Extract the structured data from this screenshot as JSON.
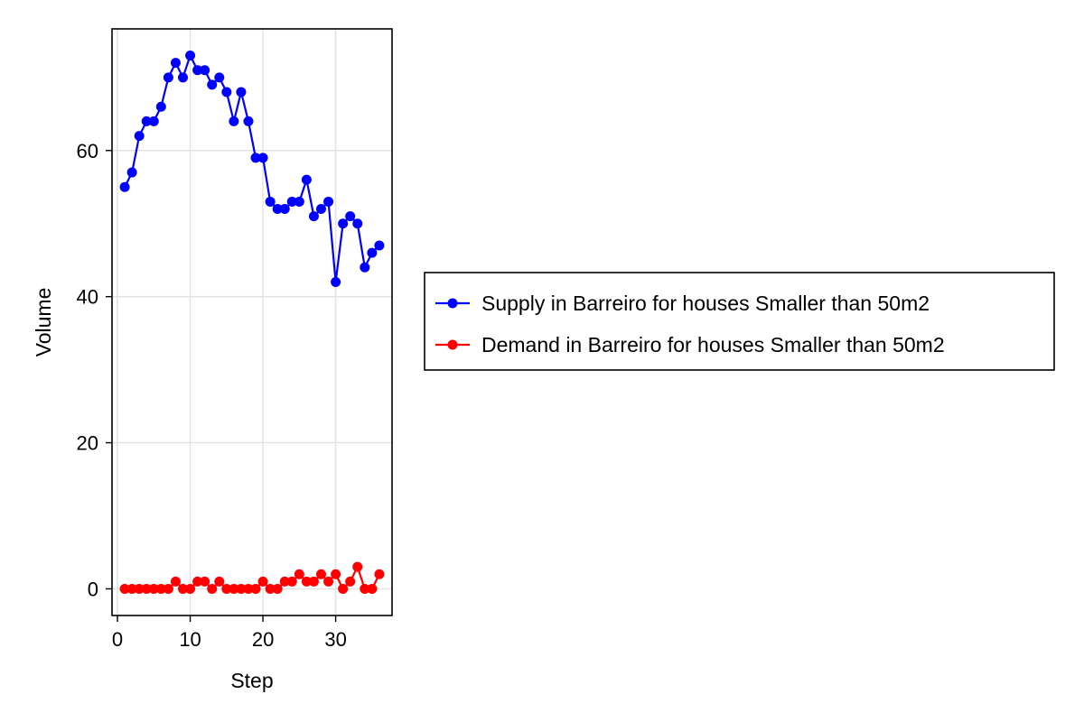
{
  "chart_data": {
    "type": "line",
    "title": "",
    "xlabel": "Step",
    "ylabel": "Volume",
    "xlim": [
      -0.75,
      37.75
    ],
    "ylim": [
      -3.65,
      76.65
    ],
    "xticks": [
      0,
      10,
      20,
      30
    ],
    "yticks": [
      0,
      20,
      40,
      60
    ],
    "grid": true,
    "legend_position": "right",
    "x": [
      1,
      2,
      3,
      4,
      5,
      6,
      7,
      8,
      9,
      10,
      11,
      12,
      13,
      14,
      15,
      16,
      17,
      18,
      19,
      20,
      21,
      22,
      23,
      24,
      25,
      26,
      27,
      28,
      29,
      30,
      31,
      32,
      33,
      34,
      35,
      36
    ],
    "series": [
      {
        "name": "Supply in Barreiro for houses Smaller than 50m2",
        "color": "#0000ff",
        "values": [
          55,
          57,
          62,
          64,
          64,
          66,
          70,
          72,
          70,
          73,
          71,
          71,
          69,
          70,
          68,
          64,
          68,
          64,
          59,
          59,
          53,
          52,
          52,
          53,
          53,
          56,
          51,
          52,
          53,
          42,
          50,
          51,
          50,
          44,
          46,
          47
        ]
      },
      {
        "name": "Demand in Barreiro for houses Smaller than 50m2",
        "color": "#ff0000",
        "values": [
          0,
          0,
          0,
          0,
          0,
          0,
          0,
          1,
          0,
          0,
          1,
          1,
          0,
          1,
          0,
          0,
          0,
          0,
          0,
          1,
          0,
          0,
          1,
          1,
          2,
          1,
          1,
          2,
          1,
          2,
          0,
          1,
          3,
          0,
          0,
          2
        ]
      }
    ]
  }
}
